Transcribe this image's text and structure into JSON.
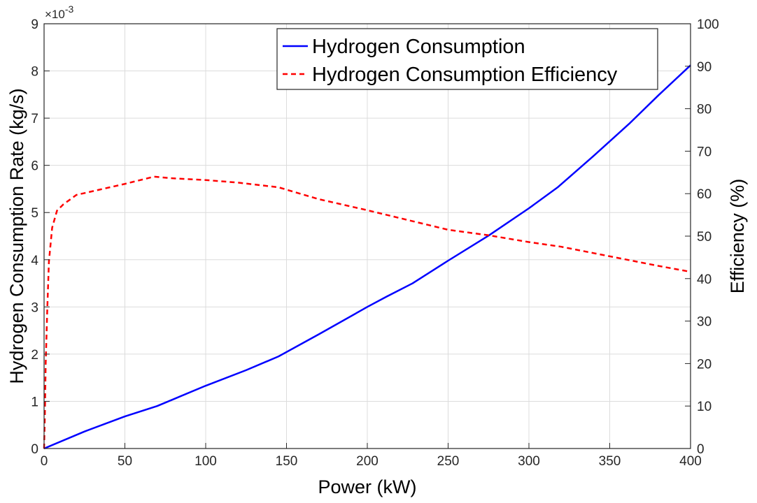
{
  "chart_data": {
    "type": "line",
    "xlabel": "Power (kW)",
    "ylabel_left": "Hydrogen Consumption Rate (kg/s)",
    "ylabel_right": "Efficiency (%)",
    "left_axis_multiplier": "×10",
    "left_axis_exponent": "-3",
    "xlim": [
      0,
      400
    ],
    "ylim_left": [
      0,
      9
    ],
    "ylim_right": [
      0,
      100
    ],
    "x_ticks": [
      "0",
      "50",
      "100",
      "150",
      "200",
      "250",
      "300",
      "350",
      "400"
    ],
    "y_left_ticks": [
      "0",
      "1",
      "2",
      "3",
      "4",
      "5",
      "6",
      "7",
      "8",
      "9"
    ],
    "y_right_ticks": [
      "0",
      "10",
      "20",
      "30",
      "40",
      "50",
      "60",
      "70",
      "80",
      "90",
      "100"
    ],
    "grid": true,
    "legend_position": "top-right",
    "series": [
      {
        "name": "Hydrogen Consumption",
        "axis": "left",
        "color": "#0000ff",
        "dash": "solid",
        "x": [
          0,
          25,
          50,
          70,
          100,
          125,
          145,
          170,
          200,
          212,
          228,
          250,
          275,
          300,
          318,
          340,
          362,
          380,
          400
        ],
        "y": [
          0.0,
          0.36,
          0.68,
          0.9,
          1.33,
          1.66,
          1.95,
          2.42,
          3.0,
          3.22,
          3.5,
          3.98,
          4.51,
          5.09,
          5.54,
          6.2,
          6.88,
          7.48,
          8.12
        ]
      },
      {
        "name": "Hydrogen Consumption Efficiency",
        "axis": "right",
        "color": "#ff0000",
        "dash": "dashed",
        "x": [
          0,
          0.5,
          1,
          2,
          3,
          5,
          8,
          12,
          20,
          35,
          50,
          68,
          80,
          100,
          120,
          145,
          170,
          200,
          225,
          250,
          275,
          300,
          320,
          340,
          360,
          380,
          400
        ],
        "y": [
          0,
          8,
          20,
          33,
          44,
          52,
          56,
          57.5,
          59.7,
          61,
          62.3,
          64,
          63.6,
          63.2,
          62.6,
          61.5,
          58.7,
          56.1,
          53.8,
          51.5,
          50.2,
          48.6,
          47.5,
          46,
          44.5,
          43,
          41.6
        ]
      }
    ]
  }
}
